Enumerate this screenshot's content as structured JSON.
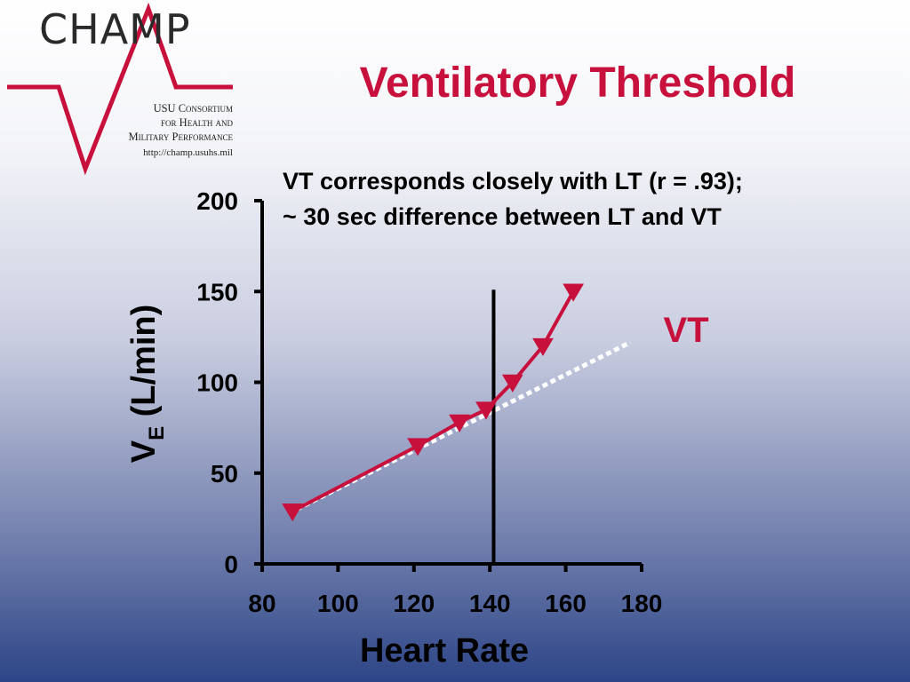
{
  "logo": {
    "name": "CHAMP",
    "line1": "USU Consortium",
    "line2": "for Health and",
    "line3": "Military Performance",
    "url": "http://champ.usuhs.mil"
  },
  "slide": {
    "title": "Ventilatory Threshold",
    "subtitle_line1": "VT corresponds closely with LT (r = .93);",
    "subtitle_line2": "~ 30 sec difference between LT and VT"
  },
  "colors": {
    "accent": "#c8103c",
    "trend": "#ffffff",
    "axis": "#000000"
  },
  "chart_data": {
    "type": "line",
    "xlabel": "Heart Rate",
    "ylabel_main": "V",
    "ylabel_sub": "E",
    "ylabel_rest": " (L/min)",
    "xlim": [
      80,
      180
    ],
    "ylim": [
      0,
      200
    ],
    "xticks": [
      80,
      100,
      120,
      140,
      160,
      180
    ],
    "yticks": [
      0,
      50,
      100,
      150,
      200
    ],
    "grid": false,
    "series": [
      {
        "marker": "triangle-down",
        "color": "#c8103c",
        "x": [
          88,
          121,
          132,
          139,
          146,
          154,
          162
        ],
        "y": [
          29,
          65,
          78,
          85,
          100,
          120,
          150
        ]
      }
    ],
    "trend_line": {
      "style": "dotted",
      "color": "#ffffff",
      "x": [
        89,
        177
      ],
      "y": [
        30,
        122
      ]
    },
    "threshold_line": {
      "x": 141,
      "y": [
        0,
        151
      ]
    },
    "annotation": {
      "text": "VT",
      "x": 173,
      "y": 131,
      "color": "#c8103c"
    }
  }
}
